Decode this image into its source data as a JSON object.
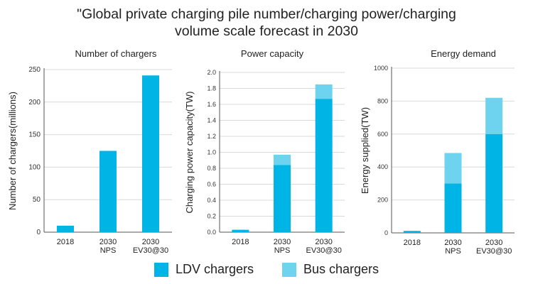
{
  "title_line1": "\"Global private charging pile number/charging power/charging",
  "title_line2": "volume scale forecast in 2030",
  "colors": {
    "ldv": "#00b4e6",
    "bus": "#6dd3ef",
    "axis": "#555555",
    "grid": "#d9d9d9"
  },
  "legend": [
    {
      "name": "LDV chargers",
      "color_key": "ldv"
    },
    {
      "name": "Bus chargers",
      "color_key": "bus"
    }
  ],
  "chart_data": [
    {
      "type": "bar",
      "title": "Number of chargers",
      "xlabel": "",
      "ylabel": "Number of chargers(millions)",
      "categories": [
        [
          "2018"
        ],
        [
          "2030",
          "NPS"
        ],
        [
          "2030",
          "EV30@30"
        ]
      ],
      "ylim": [
        0,
        250
      ],
      "yticks": [
        0,
        50,
        100,
        150,
        200,
        250
      ],
      "tick_decimals": 0,
      "grid": true,
      "stacked": true,
      "series": [
        {
          "name": "LDV chargers",
          "values": [
            10,
            125,
            241
          ]
        },
        {
          "name": "Bus chargers",
          "values": [
            0,
            0,
            0
          ]
        }
      ]
    },
    {
      "type": "bar",
      "title": "Power capacity",
      "xlabel": "",
      "ylabel": "Charging power capacity(TW)",
      "categories": [
        [
          "2018"
        ],
        [
          "2030",
          "NPS"
        ],
        [
          "2030",
          "EV30@30"
        ]
      ],
      "ylim": [
        0,
        2.0
      ],
      "yticks": [
        0,
        0.2,
        0.4,
        0.6,
        0.8,
        1.0,
        1.2,
        1.4,
        1.6,
        1.8,
        2.0
      ],
      "tick_decimals": 1,
      "grid": true,
      "stacked": true,
      "series": [
        {
          "name": "LDV chargers",
          "values": [
            0.03,
            0.84,
            1.67
          ]
        },
        {
          "name": "Bus chargers",
          "values": [
            0,
            0.13,
            0.18
          ]
        }
      ]
    },
    {
      "type": "bar",
      "title": "Energy demand",
      "xlabel": "",
      "ylabel": "Energy supplied(TW)",
      "categories": [
        [
          "2018"
        ],
        [
          "2030",
          "NPS"
        ],
        [
          "2030",
          "EV30@30"
        ]
      ],
      "ylim": [
        0,
        1000
      ],
      "yticks": [
        0,
        200,
        400,
        600,
        800,
        1000
      ],
      "tick_decimals": 0,
      "grid": true,
      "stacked": true,
      "series": [
        {
          "name": "LDV chargers",
          "values": [
            12,
            300,
            600
          ]
        },
        {
          "name": "Bus chargers",
          "values": [
            0,
            185,
            220
          ]
        }
      ]
    }
  ]
}
